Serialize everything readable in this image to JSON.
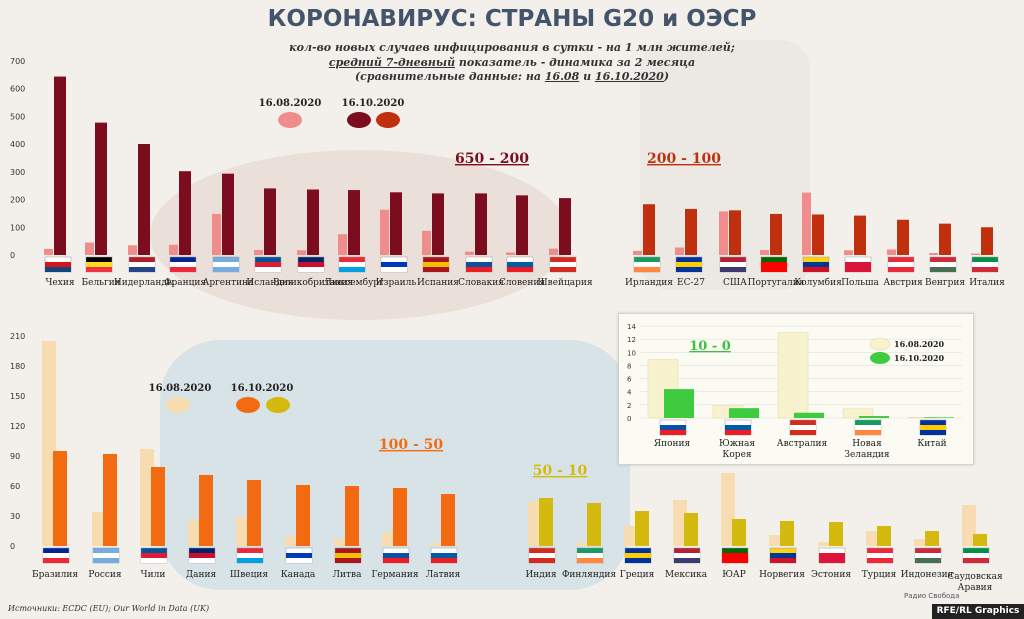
{
  "title": "КОРОНАВИРУС: СТРАНЫ G20 и ОЭСР",
  "subtitle_line1": "кол-во новых случаев инфицирования в сутки - на 1 млн жителей;",
  "subtitle_line2_u": "средний 7-дневный",
  "subtitle_line2_rest": " показатель -  динамика за 2 месяца",
  "subtitle_line3_a": "(сравнительные данные: на ",
  "subtitle_line3_d1": "16.08",
  "subtitle_line3_b": " и ",
  "subtitle_line3_d2": "16.10.2020",
  "subtitle_line3_c": ")",
  "footer_sources": "Источники: ECDC (EU); Our World in Data (UK)",
  "footer_brand": "RFE/RL Graphics",
  "footer_radio": "Радио Свобода",
  "colors": {
    "aug_top": "#f08c8c",
    "oct_top_a": "#7b0d1e",
    "oct_top_b": "#c0300f",
    "aug_bottom": "#f7dcb2",
    "oct_bottom_a": "#f26b10",
    "oct_bottom_b": "#d4b90f",
    "aug_inset": "#f8f2cf",
    "oct_inset": "#3fcb3f"
  },
  "chart_data": [
    {
      "type": "bar",
      "panel": "top",
      "ylim": [
        0,
        700
      ],
      "yticks": [
        0,
        100,
        200,
        300,
        400,
        500,
        600,
        700
      ],
      "legend": {
        "date1": "16.08.2020",
        "date2": "16.10.2020"
      },
      "group_labels": [
        "650 - 200",
        "200 - 100"
      ],
      "categories": [
        "Чехия",
        "Бельгия",
        "Нидерланды",
        "Франция",
        "Аргентина",
        "Исландия",
        "Великобритания",
        "Люксембург",
        "Израиль",
        "Испания",
        "Словакия",
        "Словения",
        "Швейцария",
        "Ирландия",
        "ЕС-27",
        "США",
        "Португалия",
        "Колумбия",
        "Польша",
        "Австрия",
        "Венгрия",
        "Италия"
      ],
      "series": [
        {
          "name": "16.08.2020",
          "values": [
            22,
            45,
            35,
            37,
            148,
            18,
            17,
            75,
            163,
            87,
            12,
            9,
            23,
            15,
            27,
            157,
            18,
            225,
            17,
            20,
            7,
            5
          ]
        },
        {
          "name": "16.10.2020",
          "values": [
            643,
            477,
            400,
            302,
            293,
            240,
            236,
            234,
            226,
            222,
            222,
            215,
            205,
            183,
            166,
            161,
            148,
            146,
            142,
            127,
            113,
            100
          ]
        }
      ]
    },
    {
      "type": "bar",
      "panel": "bottom",
      "ylim": [
        0,
        210
      ],
      "yticks": [
        0,
        30,
        60,
        90,
        120,
        150,
        180,
        210
      ],
      "legend": {
        "date1": "16.08.2020",
        "date2": "16.10.2020"
      },
      "group_labels": [
        "100 - 50",
        "50 - 10"
      ],
      "categories": [
        "Бразилия",
        "Россия",
        "Чили",
        "Дания",
        "Швеция",
        "Канада",
        "Литва",
        "Германия",
        "Латвия",
        "Индия",
        "Финляндия",
        "Греция",
        "Мексика",
        "ЮАР",
        "Норвегия",
        "Эстония",
        "Турция",
        "Индонезия",
        "Саудовская Аравия"
      ],
      "series": [
        {
          "name": "16.08.2020",
          "values": [
            205,
            34,
            97,
            26,
            29,
            10,
            7,
            14,
            3,
            45,
            3,
            20,
            46,
            73,
            11,
            4,
            15,
            7,
            41
          ]
        },
        {
          "name": "16.10.2020",
          "values": [
            95,
            92,
            79,
            71,
            66,
            61,
            60,
            58,
            52,
            48,
            43,
            35,
            33,
            27,
            25,
            24,
            20,
            15,
            12
          ]
        }
      ]
    },
    {
      "type": "bar",
      "panel": "inset",
      "ylim": [
        0,
        14
      ],
      "yticks": [
        0,
        2,
        4,
        6,
        8,
        10,
        12,
        14
      ],
      "group_label": "10 - 0",
      "categories": [
        "Япония",
        "Южная Корея",
        "Австралия",
        "Новая Зеландия",
        "Китай"
      ],
      "series": [
        {
          "name": "16.08.2020",
          "values": [
            8.9,
            1.9,
            13.0,
            1.4,
            0.1
          ]
        },
        {
          "name": "16.10.2020",
          "values": [
            4.4,
            1.5,
            0.8,
            0.3,
            0.1
          ]
        }
      ]
    }
  ]
}
